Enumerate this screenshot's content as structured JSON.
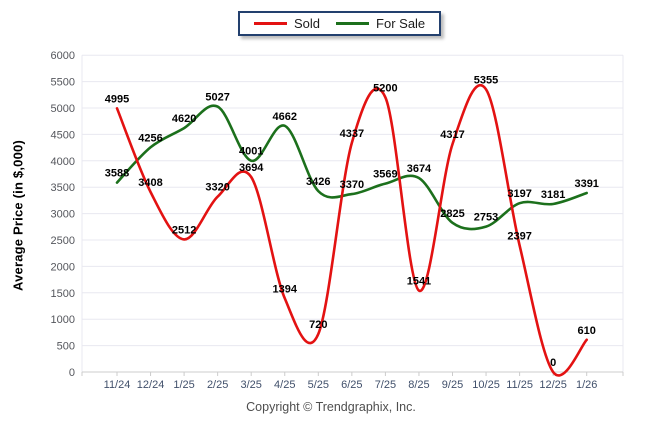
{
  "chart_data": {
    "type": "line",
    "title": "",
    "xlabel": "",
    "ylabel": "Average Price (in $,000)",
    "categories": [
      "11/24",
      "12/24",
      "1/25",
      "2/25",
      "3/25",
      "4/25",
      "5/25",
      "6/25",
      "7/25",
      "8/25",
      "9/25",
      "10/25",
      "11/25",
      "12/25",
      "1/26"
    ],
    "series": [
      {
        "name": "Sold",
        "color": "#e31212",
        "values": [
          4995,
          3408,
          2512,
          3320,
          3694,
          1394,
          720,
          4337,
          5200,
          1541,
          4317,
          5355,
          2397,
          0,
          610
        ]
      },
      {
        "name": "For Sale",
        "color": "#1c701c",
        "values": [
          3588,
          4256,
          4620,
          5027,
          4001,
          4662,
          3426,
          3370,
          3569,
          3674,
          2825,
          2753,
          3197,
          3181,
          3391
        ]
      }
    ],
    "ylim": [
      0,
      6000
    ],
    "ytick_step": 500,
    "grid": true,
    "smooth": true,
    "legend_position": "top-center",
    "data_labels": true
  },
  "footer": {
    "copyright": "Copyright © Trendgraphix, Inc."
  },
  "style_colors": {
    "gridline": "#e8e8f0",
    "axis_line": "#cccccc",
    "y_tick_label": "#54565c",
    "x_tick_label": "#41506b",
    "data_label": "#000000",
    "legend_border": "#23406e"
  }
}
